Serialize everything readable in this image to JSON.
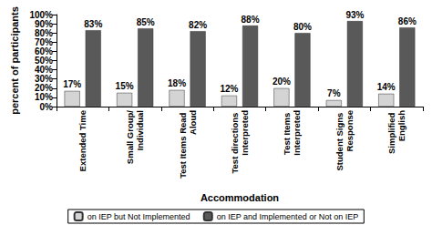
{
  "chart_data": {
    "type": "bar",
    "x_label": "Accommodation",
    "y_label": "percent of participants",
    "categories": [
      "Extended Time",
      "Small Group/Individual",
      "Test Items Read Aloud",
      "Test directions Interpreted",
      "Test Items Interpreted",
      "Student Signs Response",
      "Simplified English"
    ],
    "series": [
      {
        "name": "on IEP but Not Implemented",
        "color": "#d4d4d4",
        "values": [
          17,
          15,
          18,
          12,
          20,
          7,
          14
        ],
        "value_labels": [
          "17%",
          "15%",
          "18%",
          "12%",
          "20%",
          "7%",
          "14%"
        ]
      },
      {
        "name": "on IEP and Implemented or Not on IEP",
        "color": "#595959",
        "values": [
          83,
          85,
          82,
          88,
          80,
          93,
          86
        ],
        "value_labels": [
          "83%",
          "85%",
          "82%",
          "88%",
          "80%",
          "93%",
          "86%"
        ]
      }
    ],
    "ylim": [
      0,
      100
    ],
    "yticks": [
      {
        "value": 0,
        "label": "0%"
      },
      {
        "value": 10,
        "label": "10%"
      },
      {
        "value": 20,
        "label": "20%"
      },
      {
        "value": 30,
        "label": "30%"
      },
      {
        "value": 40,
        "label": "40%"
      },
      {
        "value": 50,
        "label": "50%"
      },
      {
        "value": 60,
        "label": "60%"
      },
      {
        "value": 70,
        "label": "70%"
      },
      {
        "value": 80,
        "label": "80%"
      },
      {
        "value": 90,
        "label": "90%"
      },
      {
        "value": 100,
        "label": "100%"
      }
    ],
    "data_labels": true,
    "legend": "bottom",
    "grid": false
  }
}
